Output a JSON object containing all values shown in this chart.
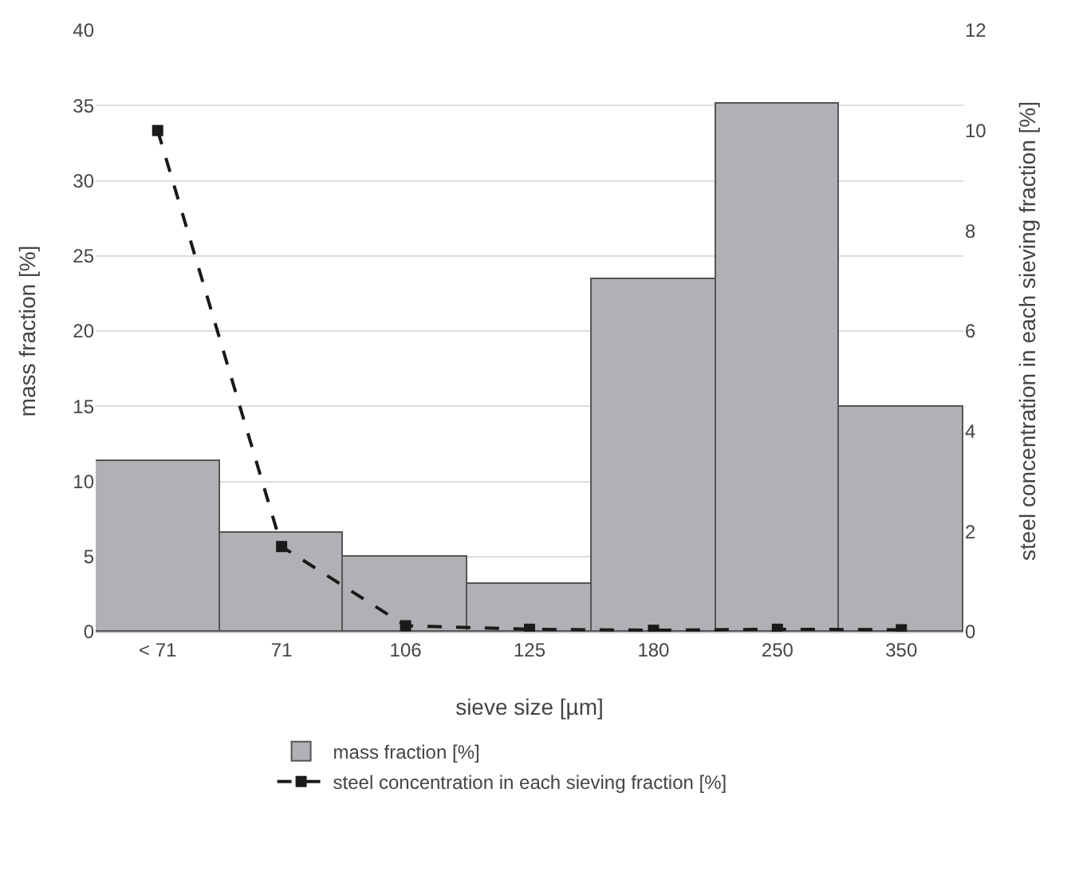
{
  "chart_data": {
    "type": "bar",
    "xlabel": "sieve size [µm]",
    "ylabel": "mass fraction [%]",
    "y2label": "steel concentration in each sieving fraction [%]",
    "categories": [
      "< 71",
      "71",
      "106",
      "125",
      "180",
      "250",
      "350"
    ],
    "series": [
      {
        "name": "mass fraction [%]",
        "color": "#b0b1b5",
        "values": [
          11.4,
          6.6,
          5.0,
          3.2,
          23.4,
          35.1,
          15.0
        ]
      },
      {
        "name": "steel concentration in each sieving fraction [%]",
        "type": "line",
        "axis": "y2",
        "color": "#1a1a1a",
        "marker": "square",
        "line_style": "dashed",
        "values": [
          10.0,
          1.7,
          0.12,
          0.05,
          0.03,
          0.05,
          0.04
        ]
      }
    ],
    "ylim": [
      0,
      40
    ],
    "yticks": [
      0,
      5,
      10,
      15,
      20,
      25,
      30,
      35,
      40
    ],
    "y2lim": [
      0,
      12
    ],
    "y2ticks": [
      0,
      2,
      4,
      6,
      8,
      10,
      12
    ],
    "grid": "y",
    "legend": "bottom"
  }
}
